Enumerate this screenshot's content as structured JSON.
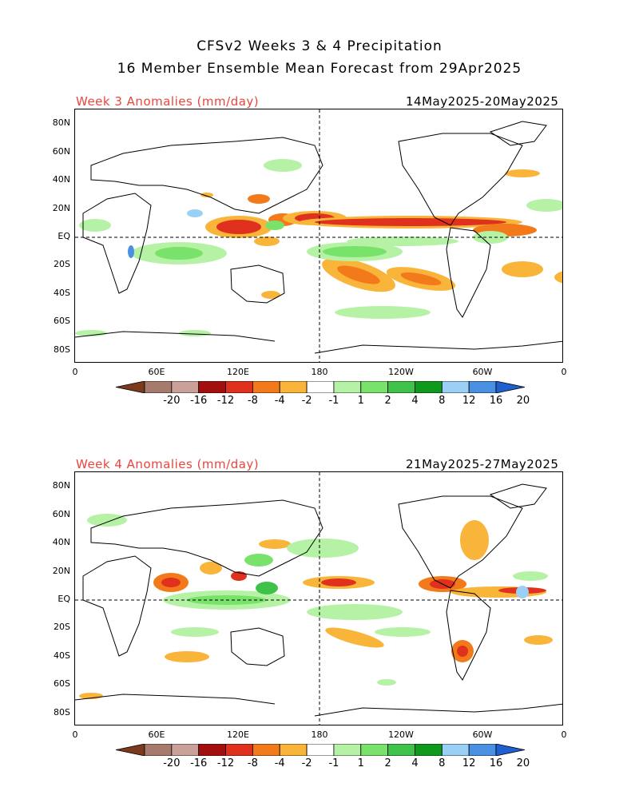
{
  "title": {
    "line1": "CFSv2 Weeks 3 & 4 Precipitation",
    "line2": "16 Member Ensemble Mean Forecast from 29Apr2025"
  },
  "panels": [
    {
      "label": "Week 3 Anomalies (mm/day)",
      "dates": "14May2025-20May2025",
      "lat_labels": [
        "80N",
        "60N",
        "40N",
        "20N",
        "EQ",
        "20S",
        "40S",
        "60S",
        "80S"
      ],
      "lon_labels": [
        "0",
        "60E",
        "120E",
        "180",
        "120W",
        "60W",
        "0"
      ]
    },
    {
      "label": "Week 4 Anomalies (mm/day)",
      "dates": "21May2025-27May2025",
      "lat_labels": [
        "80N",
        "60N",
        "40N",
        "20N",
        "EQ",
        "20S",
        "40S",
        "60S",
        "80S"
      ],
      "lon_labels": [
        "0",
        "60E",
        "120E",
        "180",
        "120W",
        "60W",
        "0"
      ]
    }
  ],
  "colorbar": {
    "labels": [
      "-20",
      "-16",
      "-12",
      "-8",
      "-4",
      "-2",
      "-1",
      "1",
      "2",
      "4",
      "8",
      "12",
      "16",
      "20"
    ],
    "colors": [
      "#7b3a1e",
      "#a67b6d",
      "#c9a198",
      "#a30f0f",
      "#e0301e",
      "#f27a1a",
      "#f9b43a",
      "#ffffff",
      "#b6f2a6",
      "#78e26a",
      "#3fc24a",
      "#0f9a1e",
      "#9ad0f5",
      "#4a90e2",
      "#1f5fd0"
    ]
  },
  "colors": {
    "title_red": "#e8453c",
    "wet": "#3fc24a",
    "dry": "#e0301e"
  }
}
